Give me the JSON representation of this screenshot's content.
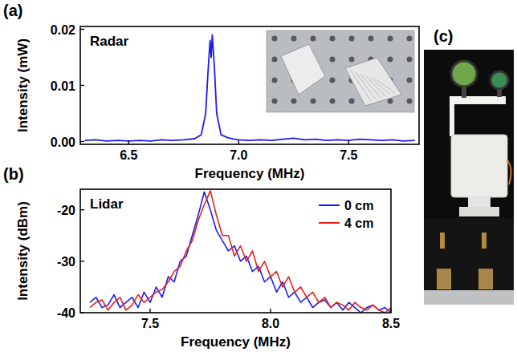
{
  "chart_data": [
    {
      "type": "line",
      "panel": "(a)",
      "annotation": "Radar",
      "x_label": "Frequency (MHz)",
      "y_label": "Intensity (mW)",
      "x": [
        6.3,
        6.35,
        6.4,
        6.45,
        6.5,
        6.55,
        6.6,
        6.65,
        6.7,
        6.75,
        6.8,
        6.83,
        6.85,
        6.86,
        6.87,
        6.875,
        6.88,
        6.89,
        6.9,
        6.92,
        6.95,
        6.98,
        7.0,
        7.05,
        7.1,
        7.15,
        7.2,
        7.25,
        7.3,
        7.35,
        7.4,
        7.45,
        7.5,
        7.55,
        7.6,
        7.65,
        7.7,
        7.75,
        7.8
      ],
      "values": [
        0.0002,
        0.0003,
        0.0001,
        0.0002,
        0.0001,
        0.0002,
        0.0001,
        0.0003,
        0.0002,
        0.0003,
        0.0005,
        0.0012,
        0.005,
        0.012,
        0.018,
        0.015,
        0.019,
        0.013,
        0.005,
        0.0012,
        0.0007,
        0.0004,
        0.0003,
        0.0002,
        0.0003,
        0.0002,
        0.0004,
        0.0006,
        0.0003,
        0.0004,
        0.0002,
        0.0003,
        0.0002,
        0.0004,
        0.0003,
        0.0002,
        0.0003,
        0.0001,
        0.0002
      ],
      "color": "#1c1cf0",
      "xlim": [
        6.28,
        7.82
      ],
      "xticks": [
        6.5,
        {
          "value": 7,
          "label": "7.0"
        },
        7.5
      ],
      "ylim": [
        -0.0005,
        0.0205
      ],
      "yticks": [
        {
          "value": 0,
          "label": "0.00"
        },
        {
          "value": 0.01,
          "label": "0.01"
        },
        {
          "value": 0.02,
          "label": "0.02"
        }
      ]
    },
    {
      "type": "line",
      "panel": "(b)",
      "annotation": "Lidar",
      "x_label": "Frequency (MHz)",
      "y_label": "Intensity (dBm)",
      "x": [
        7.25,
        7.275,
        7.3,
        7.325,
        7.35,
        7.375,
        7.4,
        7.425,
        7.45,
        7.475,
        7.5,
        7.525,
        7.55,
        7.575,
        7.6,
        7.625,
        7.65,
        7.675,
        7.7,
        7.725,
        7.75,
        7.775,
        7.8,
        7.825,
        7.85,
        7.875,
        7.9,
        7.925,
        7.95,
        7.975,
        8.0,
        8.025,
        8.05,
        8.075,
        8.1,
        8.125,
        8.15,
        8.175,
        8.2,
        8.225,
        8.25,
        8.275,
        8.3,
        8.325,
        8.35,
        8.375,
        8.4,
        8.425,
        8.45,
        8.475,
        8.5
      ],
      "series": [
        {
          "name": "0 cm",
          "color": "#1c1cf0",
          "values": [
            -38,
            -37,
            -39,
            -38.5,
            -36.5,
            -39,
            -38,
            -37,
            -39,
            -36,
            -38,
            -35,
            -37,
            -33,
            -34,
            -30,
            -29,
            -25,
            -21,
            -16.5,
            -20,
            -24,
            -26,
            -28,
            -27,
            -30,
            -29,
            -32,
            -31,
            -34,
            -33,
            -36,
            -34,
            -37,
            -36,
            -38,
            -37,
            -39,
            -38,
            -37.5,
            -39,
            -38,
            -39.5,
            -38,
            -39,
            -40,
            -39,
            -38.5,
            -39.5,
            -39,
            -40
          ]
        },
        {
          "name": "4 cm",
          "color": "#e8201c",
          "values": [
            -39,
            -38,
            -37.5,
            -39.5,
            -38,
            -37,
            -39.5,
            -38.5,
            -36.5,
            -38,
            -37,
            -36,
            -35.5,
            -34,
            -32,
            -31,
            -28,
            -26,
            -22,
            -19,
            -16.3,
            -21,
            -25,
            -25,
            -29,
            -27,
            -30,
            -28,
            -32,
            -30,
            -33,
            -32,
            -35,
            -33,
            -36,
            -35,
            -37,
            -36,
            -38,
            -37,
            -39,
            -38,
            -38.5,
            -39.5,
            -38,
            -39,
            -39.5,
            -38.5,
            -39.5,
            -40,
            -39
          ]
        }
      ],
      "legend": "upper right",
      "xlim": [
        7.21,
        8.5
      ],
      "xticks": [
        7.5,
        {
          "value": 8,
          "label": "8.0"
        },
        8.5
      ],
      "ylim": [
        -40,
        -16
      ],
      "yticks": [
        -20,
        -30,
        -40
      ]
    }
  ],
  "photo": {
    "panel": "(c)"
  }
}
